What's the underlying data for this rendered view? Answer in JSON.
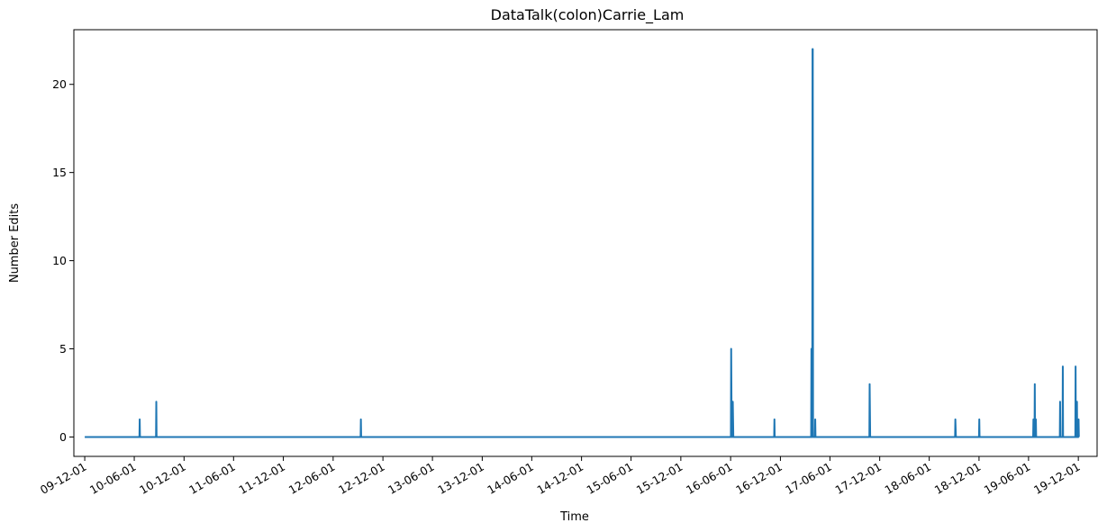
{
  "chart_data": {
    "type": "line",
    "title": "DataTalk(colon)Carrie_Lam",
    "xlabel": "Time",
    "ylabel": "Number Edits",
    "color": "#1f77b4",
    "grid": false,
    "ylim": [
      -1.1,
      23.1
    ],
    "yticks": [
      0,
      5,
      10,
      15,
      20
    ],
    "xlim": [
      "2009-10-22",
      "2020-02-08"
    ],
    "xticks": [
      {
        "date": "2009-12-01",
        "label": "09-12-01"
      },
      {
        "date": "2010-06-01",
        "label": "10-06-01"
      },
      {
        "date": "2010-12-01",
        "label": "10-12-01"
      },
      {
        "date": "2011-06-01",
        "label": "11-06-01"
      },
      {
        "date": "2011-12-01",
        "label": "11-12-01"
      },
      {
        "date": "2012-06-01",
        "label": "12-06-01"
      },
      {
        "date": "2012-12-01",
        "label": "12-12-01"
      },
      {
        "date": "2013-06-01",
        "label": "13-06-01"
      },
      {
        "date": "2013-12-01",
        "label": "13-12-01"
      },
      {
        "date": "2014-06-01",
        "label": "14-06-01"
      },
      {
        "date": "2014-12-01",
        "label": "14-12-01"
      },
      {
        "date": "2015-06-01",
        "label": "15-06-01"
      },
      {
        "date": "2015-12-01",
        "label": "15-12-01"
      },
      {
        "date": "2016-06-01",
        "label": "16-06-01"
      },
      {
        "date": "2016-12-01",
        "label": "16-12-01"
      },
      {
        "date": "2017-06-01",
        "label": "17-06-01"
      },
      {
        "date": "2017-12-01",
        "label": "17-12-01"
      },
      {
        "date": "2018-06-01",
        "label": "18-06-01"
      },
      {
        "date": "2018-12-01",
        "label": "18-12-01"
      },
      {
        "date": "2019-06-01",
        "label": "19-06-01"
      },
      {
        "date": "2019-12-01",
        "label": "19-12-01"
      }
    ],
    "series": [
      {
        "points": [
          [
            "2009-12-01",
            0
          ],
          [
            "2010-06-20",
            0
          ],
          [
            "2010-06-21",
            1
          ],
          [
            "2010-06-22",
            0
          ],
          [
            "2010-08-20",
            0
          ],
          [
            "2010-08-21",
            2
          ],
          [
            "2010-08-22",
            0
          ],
          [
            "2012-09-10",
            0
          ],
          [
            "2012-09-11",
            1
          ],
          [
            "2012-09-12",
            0
          ],
          [
            "2016-06-02",
            0
          ],
          [
            "2016-06-03",
            5
          ],
          [
            "2016-06-05",
            0
          ],
          [
            "2016-06-08",
            0
          ],
          [
            "2016-06-09",
            2
          ],
          [
            "2016-06-11",
            0
          ],
          [
            "2016-11-08",
            0
          ],
          [
            "2016-11-09",
            1
          ],
          [
            "2016-11-10",
            0
          ],
          [
            "2017-03-24",
            0
          ],
          [
            "2017-03-25",
            5
          ],
          [
            "2017-03-26",
            0
          ],
          [
            "2017-03-28",
            0
          ],
          [
            "2017-03-29",
            22
          ],
          [
            "2017-03-30",
            22
          ],
          [
            "2017-03-31",
            0
          ],
          [
            "2017-04-07",
            0
          ],
          [
            "2017-04-08",
            1
          ],
          [
            "2017-04-09",
            0
          ],
          [
            "2017-10-24",
            0
          ],
          [
            "2017-10-25",
            3
          ],
          [
            "2017-10-27",
            0
          ],
          [
            "2018-09-04",
            0
          ],
          [
            "2018-09-05",
            1
          ],
          [
            "2018-09-07",
            0
          ],
          [
            "2018-12-01",
            0
          ],
          [
            "2018-12-02",
            1
          ],
          [
            "2018-12-03",
            0
          ],
          [
            "2019-06-18",
            0
          ],
          [
            "2019-06-19",
            1
          ],
          [
            "2019-06-20",
            0
          ],
          [
            "2019-06-23",
            0
          ],
          [
            "2019-06-24",
            3
          ],
          [
            "2019-06-25",
            0
          ],
          [
            "2019-06-27",
            0
          ],
          [
            "2019-06-28",
            1
          ],
          [
            "2019-06-29",
            0
          ],
          [
            "2019-09-24",
            0
          ],
          [
            "2019-09-25",
            2
          ],
          [
            "2019-09-26",
            0
          ],
          [
            "2019-10-04",
            0
          ],
          [
            "2019-10-05",
            4
          ],
          [
            "2019-10-06",
            0
          ],
          [
            "2019-11-20",
            0
          ],
          [
            "2019-11-21",
            4
          ],
          [
            "2019-11-22",
            0
          ],
          [
            "2019-11-25",
            0
          ],
          [
            "2019-11-26",
            2
          ],
          [
            "2019-11-27",
            0
          ],
          [
            "2019-12-01",
            0
          ],
          [
            "2019-12-02",
            1
          ],
          [
            "2019-12-03",
            0
          ]
        ]
      }
    ]
  }
}
